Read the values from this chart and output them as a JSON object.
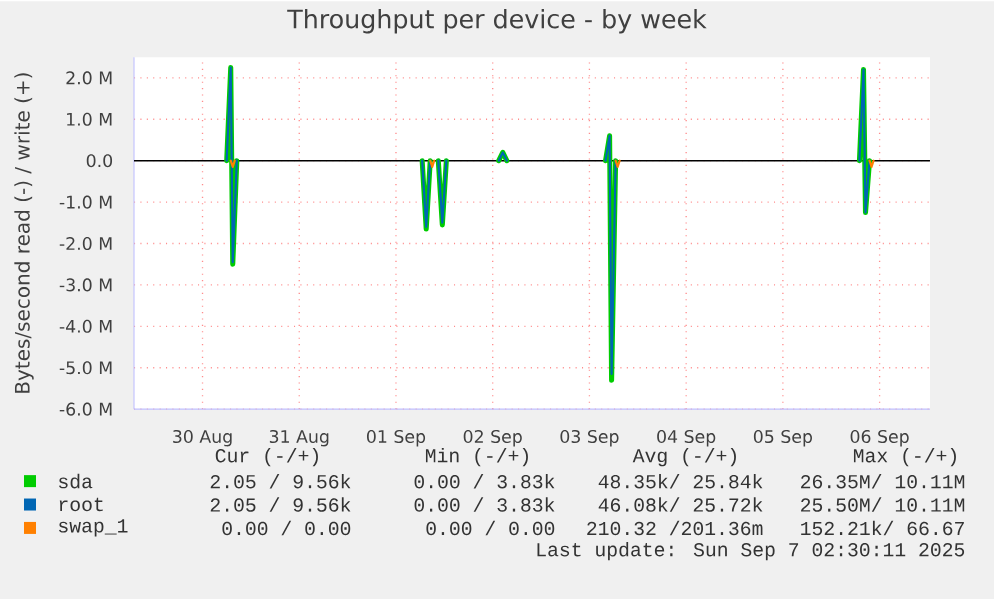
{
  "chart_data": {
    "type": "line",
    "title": "Throughput per device - by week",
    "ylabel": "Bytes/second read (-) / write (+)",
    "series": [
      {
        "name": "sda",
        "color": "#00cc00",
        "x": [
          "2025-08-30T18:00",
          "2025-08-30T19:00",
          "2025-08-30T19:30",
          "2025-08-30T20:30",
          "2025-08-30T21:00",
          "2025-09-01T18:30",
          "2025-09-01T19:30",
          "2025-09-01T20:30",
          "2025-09-01T21:00",
          "2025-09-01T22:30",
          "2025-09-01T23:30",
          "2025-09-02T00:30",
          "2025-09-02T01:00",
          "2025-09-02T13:30",
          "2025-09-02T14:30",
          "2025-09-02T15:30",
          "2025-09-02T16:00",
          "2025-09-03T16:00",
          "2025-09-03T17:00",
          "2025-09-03T17:30",
          "2025-09-03T18:30",
          "2025-09-03T19:00",
          "2025-09-06T07:00",
          "2025-09-06T08:00",
          "2025-09-06T08:30",
          "2025-09-06T09:30"
        ],
        "values": [
          0,
          2.25,
          -2.5,
          0,
          null,
          0,
          -1.65,
          0,
          null,
          0,
          -1.55,
          0,
          null,
          0,
          0.2,
          0,
          null,
          0,
          0.6,
          -5.3,
          0,
          null,
          0,
          2.2,
          -1.25,
          0
        ]
      },
      {
        "name": "root",
        "color": "#0066b3",
        "x": [
          "2025-08-30T18:00",
          "2025-08-30T19:00",
          "2025-08-30T19:30",
          "2025-08-30T20:30",
          "2025-08-30T21:00",
          "2025-09-01T18:30",
          "2025-09-01T19:30",
          "2025-09-01T20:30",
          "2025-09-01T21:00",
          "2025-09-01T22:30",
          "2025-09-01T23:30",
          "2025-09-02T00:30",
          "2025-09-02T01:00",
          "2025-09-02T13:30",
          "2025-09-02T14:30",
          "2025-09-02T15:30",
          "2025-09-02T16:00",
          "2025-09-03T16:00",
          "2025-09-03T17:00",
          "2025-09-03T17:30",
          "2025-09-03T18:30",
          "2025-09-03T19:00",
          "2025-09-06T07:00",
          "2025-09-06T08:00",
          "2025-09-06T08:30",
          "2025-09-06T09:30"
        ],
        "values": [
          0,
          2.25,
          -2.45,
          0,
          null,
          0,
          -1.6,
          0,
          null,
          0,
          -1.5,
          0,
          null,
          0,
          0.2,
          0,
          null,
          0,
          0.6,
          -5.15,
          0,
          null,
          0,
          2.2,
          -1.25,
          0
        ]
      },
      {
        "name": "swap_1",
        "color": "#ff8000",
        "x": [
          "2025-08-30T19:00",
          "2025-08-30T19:30",
          "2025-08-30T20:00",
          "2025-08-30T20:30",
          "2025-09-01T20:30",
          "2025-09-01T21:00",
          "2025-09-01T21:30",
          "2025-09-01T22:00",
          "2025-09-03T18:30",
          "2025-09-03T19:00",
          "2025-09-03T19:30",
          "2025-09-03T20:00",
          "2025-09-06T09:30",
          "2025-09-06T10:00",
          "2025-09-06T10:30"
        ],
        "values": [
          0,
          -0.15,
          0,
          null,
          0,
          -0.15,
          0,
          null,
          0,
          -0.15,
          0,
          null,
          0,
          -0.15,
          0
        ]
      }
    ],
    "xlim": [
      "2025-08-29T19:00",
      "2025-09-07T00:30"
    ],
    "xticks": [
      {
        "value": "2025-08-30T12:00",
        "label": "30 Aug"
      },
      {
        "value": "2025-08-31T12:00",
        "label": "31 Aug"
      },
      {
        "value": "2025-09-01T12:00",
        "label": "01 Sep"
      },
      {
        "value": "2025-09-02T12:00",
        "label": "02 Sep"
      },
      {
        "value": "2025-09-03T12:00",
        "label": "03 Sep"
      },
      {
        "value": "2025-09-04T12:00",
        "label": "04 Sep"
      },
      {
        "value": "2025-09-05T12:00",
        "label": "05 Sep"
      },
      {
        "value": "2025-09-06T12:00",
        "label": "06 Sep"
      }
    ],
    "ylim": [
      -6.0,
      2.5
    ],
    "yticks": [
      {
        "value": -6,
        "label": "-6.0 M"
      },
      {
        "value": -5,
        "label": "-5.0 M"
      },
      {
        "value": -4,
        "label": "-4.0 M"
      },
      {
        "value": -3,
        "label": "-3.0 M"
      },
      {
        "value": -2,
        "label": "-2.0 M"
      },
      {
        "value": -1,
        "label": "-1.0 M"
      },
      {
        "value": 0,
        "label": "0.0"
      },
      {
        "value": 1,
        "label": "1.0 M"
      },
      {
        "value": 2,
        "label": "2.0 M"
      }
    ],
    "ref_lines": [
      {
        "axis": "y",
        "value": 0,
        "color": "#000000"
      }
    ],
    "grid": true,
    "legend": "bottom",
    "annotations": [
      "Cur (-/+)",
      "Min (-/+)",
      "Avg (-/+)",
      "Max (-/+)",
      "2.05 /  9.56k",
      "0.00 /  3.83k",
      "48.35k/ 25.84k",
      "26.35M/ 10.11M",
      "2.05 /  9.56k",
      "0.00 /  3.83k",
      "46.08k/ 25.72k",
      "25.50M/ 10.11M",
      "0.00 /  0.00",
      "0.00 /  0.00",
      "210.32 /201.36m",
      "152.21k/ 66.67",
      "Last update: Sun Sep  7 02:30:11 2025"
    ]
  }
}
